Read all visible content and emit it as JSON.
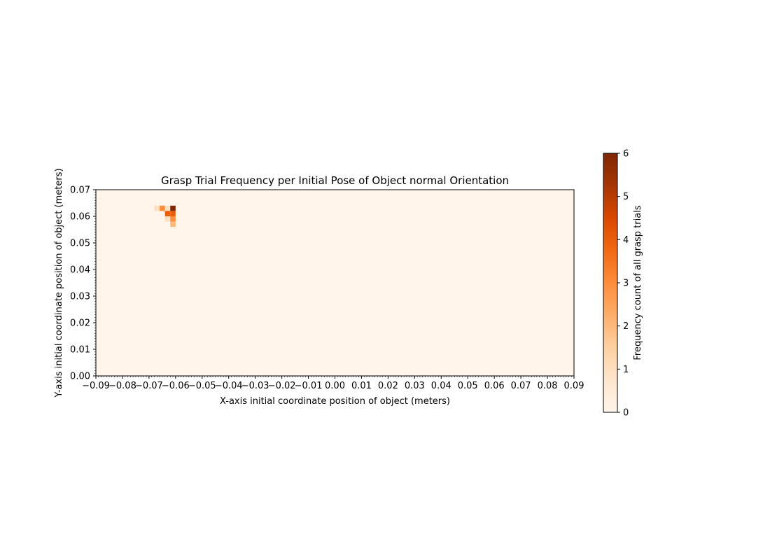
{
  "chart_data": {
    "type": "heatmap",
    "title": "Grasp Trial Frequency per Initial Pose of Object normal Orientation",
    "xlabel": "X-axis initial coordinate position of object (meters)",
    "ylabel": "Y-axis initial coordinate position of object (meters)",
    "xlim": [
      -0.09,
      0.09
    ],
    "ylim": [
      0.0,
      0.07
    ],
    "xticks": [
      -0.09,
      -0.08,
      -0.07,
      -0.06,
      -0.05,
      -0.04,
      -0.03,
      -0.02,
      -0.01,
      0.0,
      0.01,
      0.02,
      0.03,
      0.04,
      0.05,
      0.06,
      0.07,
      0.08,
      0.09
    ],
    "xtick_labels": [
      "−0.09",
      "−0.08",
      "−0.07",
      "−0.06",
      "−0.05",
      "−0.04",
      "−0.03",
      "−0.02",
      "−0.01",
      "0.00",
      "0.01",
      "0.02",
      "0.03",
      "0.04",
      "0.05",
      "0.06",
      "0.07",
      "0.08",
      "0.09"
    ],
    "yticks": [
      0.0,
      0.01,
      0.02,
      0.03,
      0.04,
      0.05,
      0.06,
      0.07
    ],
    "ytick_labels": [
      "0.00",
      "0.01",
      "0.02",
      "0.03",
      "0.04",
      "0.05",
      "0.06",
      "0.07"
    ],
    "minor_tick_step": 0.001,
    "bin_size": 0.002,
    "background_value": 0,
    "cells": [
      {
        "x": -0.068,
        "y": 0.062,
        "value": 1
      },
      {
        "x": -0.066,
        "y": 0.062,
        "value": 3
      },
      {
        "x": -0.064,
        "y": 0.062,
        "value": 1
      },
      {
        "x": -0.062,
        "y": 0.062,
        "value": 6
      },
      {
        "x": -0.064,
        "y": 0.06,
        "value": 4
      },
      {
        "x": -0.062,
        "y": 0.06,
        "value": 4
      },
      {
        "x": -0.064,
        "y": 0.058,
        "value": 1
      },
      {
        "x": -0.062,
        "y": 0.058,
        "value": 3
      },
      {
        "x": -0.062,
        "y": 0.056,
        "value": 2
      }
    ],
    "colorbar": {
      "label": "Frequency count of all grasp trials",
      "min": 0,
      "max": 6,
      "ticks": [
        0,
        1,
        2,
        3,
        4,
        5,
        6
      ],
      "tick_labels": [
        "0",
        "1",
        "2",
        "3",
        "4",
        "5",
        "6"
      ],
      "colormap": "Oranges",
      "stops": [
        "#fff5eb",
        "#fee6ce",
        "#fdd0a2",
        "#fdae6b",
        "#fd8d3c",
        "#f16913",
        "#d94801",
        "#a63603",
        "#7f2704"
      ]
    },
    "grid": false
  }
}
